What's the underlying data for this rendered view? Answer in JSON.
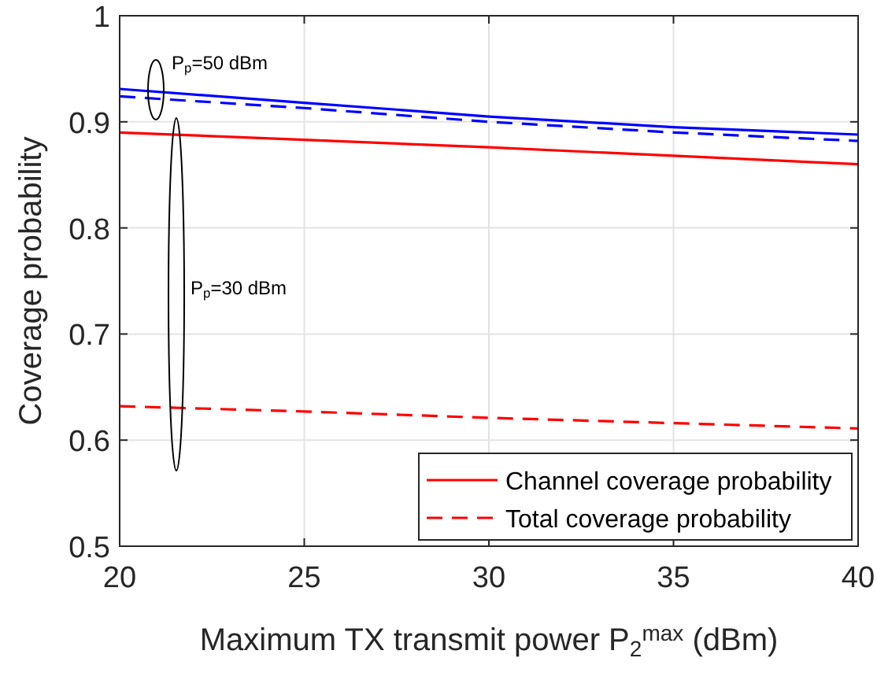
{
  "chart_data": {
    "type": "line",
    "xlabel": "Maximum TX transmit power P$_{2}$$^{max}$ (dBm)",
    "ylabel": "Coverage probability",
    "x": [
      20,
      25,
      30,
      35,
      40
    ],
    "series": [
      {
        "color": "#0000ff",
        "values": [
          0.931,
          0.918,
          0.905,
          0.895,
          0.888
        ],
        "line_style": "solid"
      },
      {
        "color": "#0000ff",
        "values": [
          0.924,
          0.913,
          0.9,
          0.89,
          0.882
        ],
        "line_style": "dashed"
      },
      {
        "name": "Channel coverage probability",
        "color": "#ff0000",
        "values": [
          0.89,
          0.883,
          0.876,
          0.868,
          0.86
        ],
        "line_style": "solid"
      },
      {
        "name": "Total coverage probability",
        "color": "#ff0000",
        "values": [
          0.632,
          0.627,
          0.621,
          0.616,
          0.611
        ],
        "line_style": "dashed"
      }
    ],
    "annotations": [
      "P$_{p}$=50 dBm",
      "P$_{p}$=30 dBm"
    ],
    "xlim": [
      20,
      40
    ],
    "xticks": [
      20,
      25,
      30,
      35,
      40
    ],
    "ylim": [
      0.5,
      1
    ],
    "yticks": [
      0.5,
      0.6,
      0.7,
      0.8,
      0.9,
      1
    ],
    "grid": true,
    "legend": "bottom right",
    "marker": "none"
  }
}
